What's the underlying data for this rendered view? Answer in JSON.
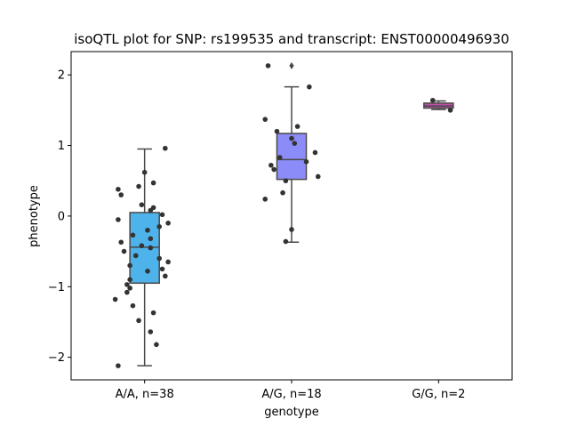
{
  "chart_data": {
    "type": "box",
    "title": "isoQTL plot for SNP: rs199535 and transcript: ENST00000496930",
    "xlabel": "genotype",
    "ylabel": "phenotype",
    "ylim": [
      -2.32,
      2.33
    ],
    "yticks": [
      -2,
      -1,
      0,
      1,
      2
    ],
    "yticklabels": [
      "−2",
      "−1",
      "0",
      "1",
      "2"
    ],
    "grid": false,
    "categories": [
      "A/A, n=38",
      "A/G, n=18",
      "G/G, n=2"
    ],
    "box_colors": [
      "#4db3ea",
      "#8c8cf9",
      "#c04fa8"
    ],
    "boxes": [
      {
        "label": "A/A, n=38",
        "whisker_low": -2.12,
        "q1": -0.95,
        "median": -0.44,
        "q3": 0.05,
        "whisker_high": 0.95,
        "outliers": []
      },
      {
        "label": "A/G, n=18",
        "whisker_low": -0.37,
        "q1": 0.52,
        "median": 0.8,
        "q3": 1.17,
        "whisker_high": 1.83,
        "outliers": [
          2.13
        ]
      },
      {
        "label": "G/G, n=2",
        "whisker_low": 1.51,
        "q1": 1.53,
        "median": 1.56,
        "q3": 1.6,
        "whisker_high": 1.63,
        "outliers": []
      }
    ],
    "points": [
      [
        0.96,
        0.62,
        0.47,
        0.42,
        0.38,
        0.3,
        0.16,
        0.12,
        0.08,
        0.02,
        -0.05,
        -0.1,
        -0.15,
        -0.2,
        -0.27,
        -0.32,
        -0.37,
        -0.42,
        -0.45,
        -0.5,
        -0.56,
        -0.6,
        -0.65,
        -0.7,
        -0.75,
        -0.78,
        -0.85,
        -0.9,
        -0.97,
        -1.02,
        -1.08,
        -1.18,
        -1.27,
        -1.37,
        -1.48,
        -1.64,
        -1.82,
        -2.12
      ],
      [
        2.13,
        1.83,
        1.37,
        1.27,
        1.2,
        1.1,
        1.03,
        0.9,
        0.83,
        0.77,
        0.72,
        0.66,
        0.56,
        0.5,
        0.33,
        0.24,
        -0.19,
        -0.36
      ],
      [
        1.64,
        1.5
      ]
    ],
    "jitter": [
      [
        0.14,
        0.0,
        0.06,
        -0.04,
        -0.18,
        -0.16,
        -0.02,
        0.06,
        0.04,
        0.12,
        -0.18,
        0.16,
        0.1,
        0.02,
        -0.08,
        0.04,
        -0.16,
        -0.02,
        0.04,
        -0.14,
        -0.06,
        0.1,
        0.16,
        -0.1,
        0.12,
        0.02,
        0.14,
        -0.1,
        -0.12,
        -0.1,
        -0.12,
        -0.2,
        -0.08,
        0.06,
        -0.04,
        0.04,
        0.08,
        -0.18
      ],
      [
        -0.16,
        0.12,
        -0.18,
        0.04,
        -0.1,
        0.0,
        0.02,
        0.16,
        -0.08,
        0.1,
        -0.14,
        -0.12,
        0.18,
        -0.04,
        -0.06,
        -0.18,
        0.0,
        -0.04
      ],
      [
        -0.04,
        0.08
      ]
    ]
  }
}
